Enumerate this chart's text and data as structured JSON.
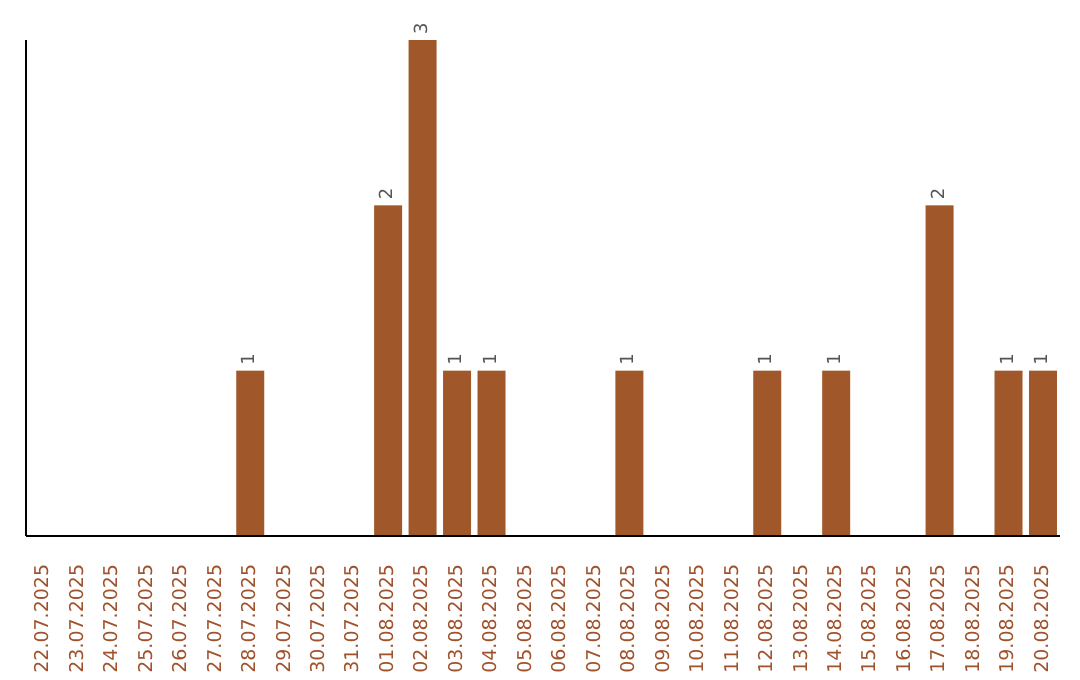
{
  "chart_data": {
    "type": "bar",
    "categories": [
      "22.07.2025",
      "23.07.2025",
      "24.07.2025",
      "25.07.2025",
      "26.07.2025",
      "27.07.2025",
      "28.07.2025",
      "29.07.2025",
      "30.07.2025",
      "31.07.2025",
      "01.08.2025",
      "02.08.2025",
      "03.08.2025",
      "04.08.2025",
      "05.08.2025",
      "06.08.2025",
      "07.08.2025",
      "08.08.2025",
      "09.08.2025",
      "10.08.2025",
      "11.08.2025",
      "12.08.2025",
      "13.08.2025",
      "14.08.2025",
      "15.08.2025",
      "16.08.2025",
      "17.08.2025",
      "18.08.2025",
      "19.08.2025",
      "20.08.2025"
    ],
    "values": [
      0,
      0,
      0,
      0,
      0,
      0,
      1,
      0,
      0,
      0,
      2,
      3,
      1,
      1,
      0,
      0,
      0,
      1,
      0,
      0,
      0,
      1,
      0,
      1,
      0,
      0,
      2,
      0,
      1,
      1
    ],
    "value_labels": [
      null,
      null,
      null,
      null,
      null,
      null,
      "1",
      null,
      null,
      null,
      "2",
      "3",
      "1",
      "1",
      null,
      null,
      null,
      "1",
      null,
      null,
      null,
      "1",
      null,
      "1",
      null,
      null,
      "2",
      null,
      "1",
      "1"
    ],
    "color": "#a0582a",
    "grid": false,
    "legend": false
  }
}
